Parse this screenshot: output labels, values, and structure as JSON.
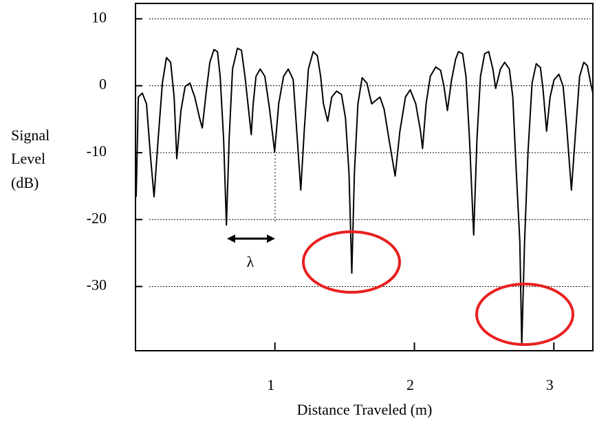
{
  "chart_data": {
    "type": "line",
    "ylabel": [
      "Signal",
      "Level",
      "(dB)"
    ],
    "xlabel": "Distance Traveled (m)",
    "annotation": "λ",
    "xlim": [
      0,
      3.28
    ],
    "ylim": [
      -39.6,
      12.3
    ],
    "xticks": [
      1,
      2,
      3
    ],
    "yticks": [
      10,
      0,
      -10,
      -20,
      -30
    ],
    "grid": true,
    "series": [
      {
        "color": "#000000",
        "x": [
          0.005,
          0.02,
          0.049,
          0.079,
          0.109,
          0.133,
          0.163,
          0.193,
          0.222,
          0.252,
          0.277,
          0.296,
          0.326,
          0.356,
          0.39,
          0.425,
          0.459,
          0.479,
          0.509,
          0.533,
          0.563,
          0.588,
          0.607,
          0.632,
          0.652,
          0.672,
          0.696,
          0.731,
          0.76,
          0.785,
          0.83,
          0.844,
          0.864,
          0.894,
          0.928,
          0.963,
          0.998,
          1.027,
          1.062,
          1.096,
          1.131,
          1.16,
          1.185,
          1.21,
          1.24,
          1.274,
          1.304,
          1.328,
          1.348,
          1.378,
          1.407,
          1.442,
          1.477,
          1.506,
          1.531,
          1.551,
          1.57,
          1.595,
          1.625,
          1.659,
          1.694,
          1.723,
          1.753,
          1.783,
          1.817,
          1.862,
          1.896,
          1.936,
          1.97,
          2.01,
          2.044,
          2.059,
          2.084,
          2.114,
          2.153,
          2.188,
          2.212,
          2.237,
          2.267,
          2.296,
          2.316,
          2.346,
          2.37,
          2.395,
          2.425,
          2.449,
          2.474,
          2.504,
          2.533,
          2.563,
          2.583,
          2.617,
          2.647,
          2.681,
          2.706,
          2.731,
          2.756,
          2.77,
          2.79,
          2.815,
          2.844,
          2.874,
          2.904,
          2.923,
          2.948,
          2.973,
          3.002,
          3.037,
          3.067,
          3.091,
          3.126,
          3.156,
          3.185,
          3.215,
          3.24,
          3.264,
          3.28
        ],
        "values": [
          -16.6,
          -1.7,
          -1.1,
          -2.7,
          -10.9,
          -16.6,
          -7.9,
          0.4,
          4.2,
          3.5,
          -1.7,
          -10.9,
          -3.7,
          -0.1,
          0.4,
          -1.7,
          -4.8,
          -6.3,
          -0.6,
          3.5,
          5.4,
          5.1,
          1.4,
          -7.9,
          -20.8,
          -7.9,
          2.5,
          5.6,
          5.3,
          1.4,
          -7.3,
          -2.7,
          1.4,
          2.5,
          1.4,
          -3.7,
          -9.9,
          -2.7,
          1.4,
          2.5,
          0.9,
          -7.9,
          -15.6,
          -6.8,
          2.5,
          5.1,
          4.5,
          1.4,
          -2.7,
          -5.3,
          -1.7,
          -0.8,
          -1.3,
          -4.8,
          -13.0,
          -28.0,
          -13.0,
          -2.7,
          1.2,
          0.4,
          -2.7,
          -2.2,
          -1.7,
          -3.5,
          -7.9,
          -13.5,
          -6.8,
          -1.7,
          -0.6,
          -2.7,
          -6.8,
          -9.4,
          -2.7,
          1.4,
          2.8,
          2.3,
          -0.1,
          -3.7,
          0.9,
          4.0,
          5.1,
          4.8,
          1.4,
          -7.9,
          -22.3,
          -7.9,
          1.4,
          4.8,
          5.1,
          2.5,
          -0.4,
          2.5,
          3.5,
          2.5,
          -1.7,
          -13.0,
          -23.3,
          -38.8,
          -23.3,
          -9.9,
          0.4,
          3.3,
          2.7,
          -0.6,
          -6.8,
          -1.7,
          0.9,
          1.7,
          -0.1,
          -5.8,
          -15.6,
          -6.8,
          1.4,
          3.5,
          3.0,
          0.4,
          -1.1
        ]
      }
    ]
  }
}
